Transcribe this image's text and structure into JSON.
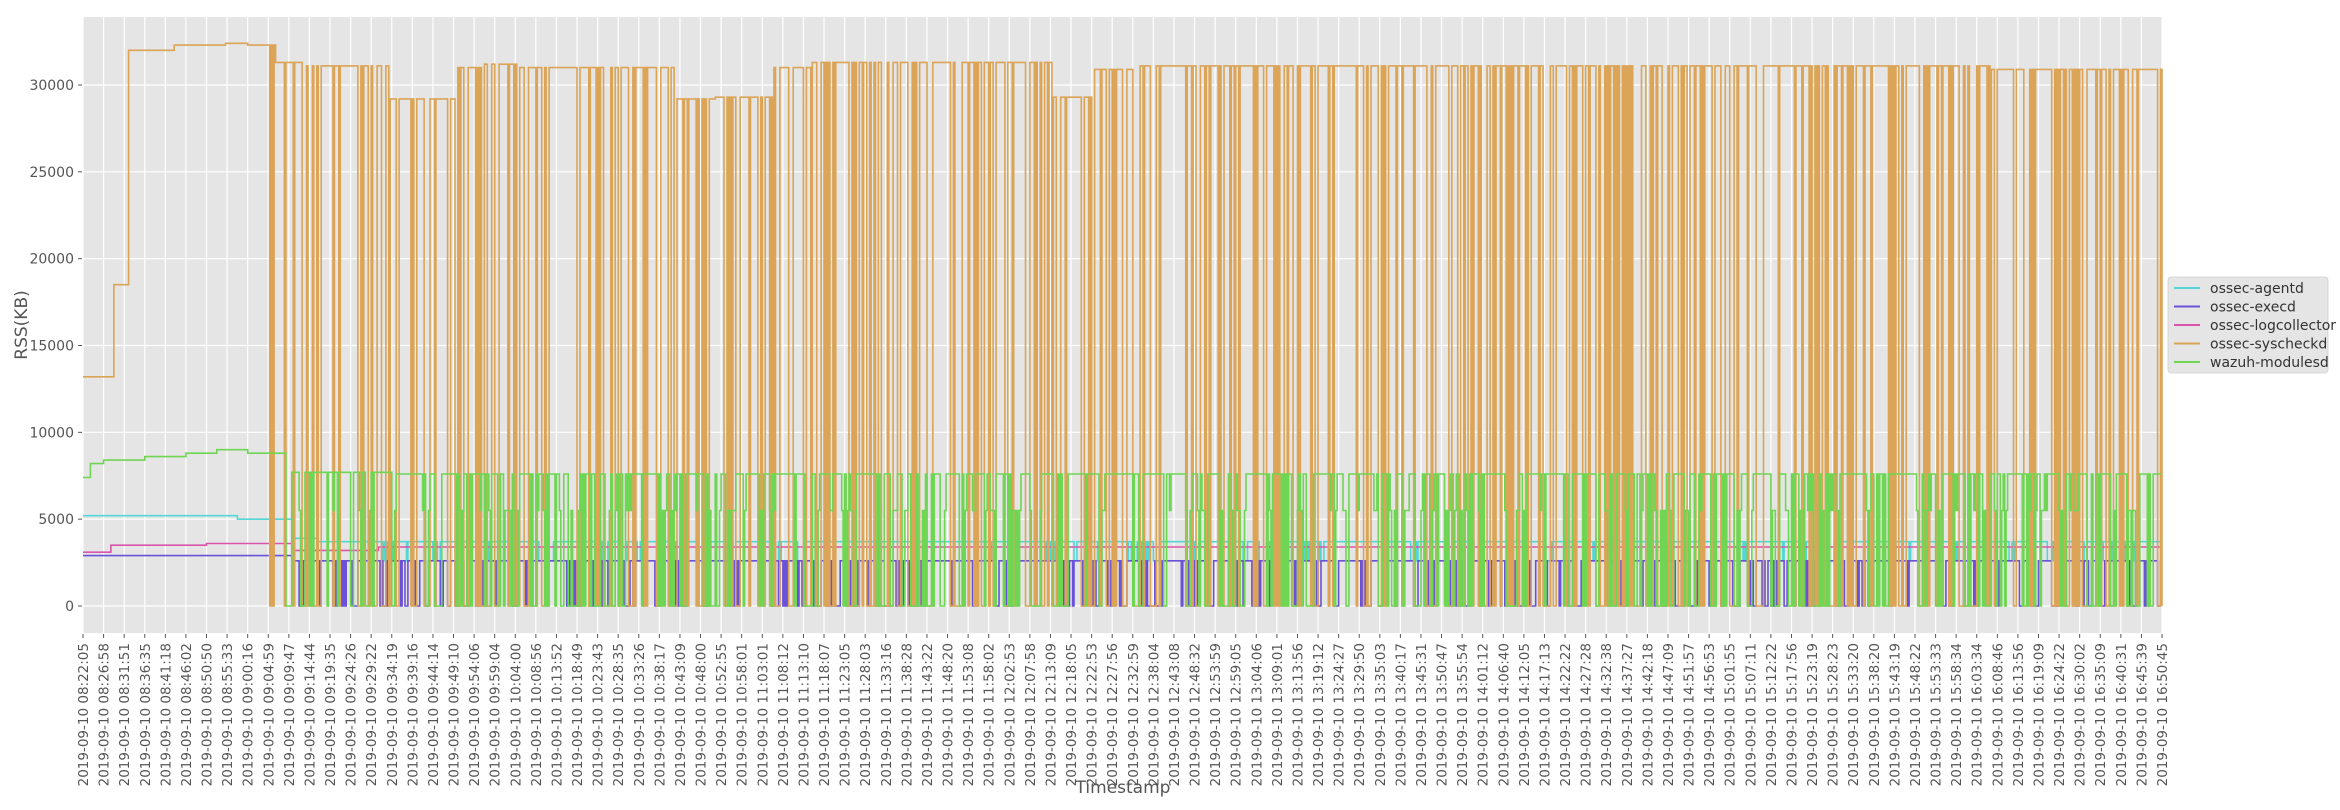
{
  "chart_data": {
    "type": "line",
    "title": "",
    "xlabel": "Timestamp",
    "ylabel": "RSS(KB)",
    "ylim": [
      -1500,
      33700
    ],
    "yticks": [
      0,
      5000,
      10000,
      15000,
      20000,
      25000,
      30000
    ],
    "grid": true,
    "legend_position": "right, outside plot, vertically centered",
    "x_tick_labels": [
      "2019-09-10 08:22:05",
      "2019-09-10 08:26:58",
      "2019-09-10 08:31:51",
      "2019-09-10 08:36:35",
      "2019-09-10 08:41:18",
      "2019-09-10 08:46:02",
      "2019-09-10 08:50:50",
      "2019-09-10 08:55:33",
      "2019-09-10 09:00:16",
      "2019-09-10 09:04:59",
      "2019-09-10 09:09:47",
      "2019-09-10 09:14:44",
      "2019-09-10 09:19:35",
      "2019-09-10 09:24:26",
      "2019-09-10 09:29:22",
      "2019-09-10 09:34:19",
      "2019-09-10 09:39:16",
      "2019-09-10 09:44:14",
      "2019-09-10 09:49:10",
      "2019-09-10 09:54:06",
      "2019-09-10 09:59:04",
      "2019-09-10 10:04:00",
      "2019-09-10 10:08:56",
      "2019-09-10 10:13:52",
      "2019-09-10 10:18:49",
      "2019-09-10 10:23:43",
      "2019-09-10 10:28:35",
      "2019-09-10 10:33:26",
      "2019-09-10 10:38:17",
      "2019-09-10 10:43:09",
      "2019-09-10 10:48:00",
      "2019-09-10 10:52:55",
      "2019-09-10 10:58:01",
      "2019-09-10 11:03:01",
      "2019-09-10 11:08:12",
      "2019-09-10 11:13:10",
      "2019-09-10 11:18:07",
      "2019-09-10 11:23:05",
      "2019-09-10 11:28:03",
      "2019-09-10 11:33:16",
      "2019-09-10 11:38:28",
      "2019-09-10 11:43:22",
      "2019-09-10 11:48:20",
      "2019-09-10 11:53:08",
      "2019-09-10 11:58:02",
      "2019-09-10 12:02:53",
      "2019-09-10 12:07:58",
      "2019-09-10 12:13:09",
      "2019-09-10 12:18:05",
      "2019-09-10 12:22:53",
      "2019-09-10 12:27:56",
      "2019-09-10 12:32:59",
      "2019-09-10 12:38:04",
      "2019-09-10 12:43:08",
      "2019-09-10 12:48:32",
      "2019-09-10 12:53:59",
      "2019-09-10 12:59:05",
      "2019-09-10 13:04:06",
      "2019-09-10 13:09:01",
      "2019-09-10 13:13:56",
      "2019-09-10 13:19:12",
      "2019-09-10 13:24:27",
      "2019-09-10 13:29:50",
      "2019-09-10 13:35:03",
      "2019-09-10 13:40:17",
      "2019-09-10 13:45:31",
      "2019-09-10 13:50:47",
      "2019-09-10 13:55:54",
      "2019-09-10 14:01:12",
      "2019-09-10 14:06:40",
      "2019-09-10 14:12:05",
      "2019-09-10 14:17:13",
      "2019-09-10 14:22:22",
      "2019-09-10 14:27:28",
      "2019-09-10 14:32:38",
      "2019-09-10 14:37:27",
      "2019-09-10 14:42:18",
      "2019-09-10 14:47:09",
      "2019-09-10 14:51:57",
      "2019-09-10 14:56:53",
      "2019-09-10 15:01:55",
      "2019-09-10 15:07:11",
      "2019-09-10 15:12:22",
      "2019-09-10 15:17:56",
      "2019-09-10 15:23:19",
      "2019-09-10 15:28:23",
      "2019-09-10 15:33:20",
      "2019-09-10 15:38:20",
      "2019-09-10 15:43:19",
      "2019-09-10 15:48:22",
      "2019-09-10 15:53:33",
      "2019-09-10 15:58:34",
      "2019-09-10 16:03:34",
      "2019-09-10 16:08:46",
      "2019-09-10 16:13:56",
      "2019-09-10 16:19:09",
      "2019-09-10 16:24:22",
      "2019-09-10 16:30:02",
      "2019-09-10 16:35:09",
      "2019-09-10 16:40:31",
      "2019-09-10 16:45:39",
      "2019-09-10 16:50:45"
    ],
    "series": [
      {
        "name": "ossec-agentd",
        "color": "#55d6d6",
        "baseline_by_tick": [
          [
            0,
            5200
          ],
          [
            7.5,
            5000
          ],
          [
            10.2,
            3900
          ],
          [
            11.3,
            3700
          ],
          [
            101,
            3700
          ]
        ],
        "dip_to": 2600,
        "dip_start_tick": 10.5,
        "dip_density": 0.18
      },
      {
        "name": "ossec-execd",
        "color": "#6a52d8",
        "baseline_by_tick": [
          [
            0,
            2900
          ],
          [
            9.9,
            2900
          ],
          [
            10.2,
            2600
          ],
          [
            101,
            2600
          ]
        ],
        "dip_to": 0,
        "dip_start_tick": 10.5,
        "dip_density": 0.55
      },
      {
        "name": "ossec-logcollector",
        "color": "#db55ad",
        "baseline_by_tick": [
          [
            0,
            3100
          ],
          [
            1.3,
            3500
          ],
          [
            6,
            3600
          ],
          [
            9.9,
            3600
          ],
          [
            10.2,
            3200
          ],
          [
            14.3,
            3400
          ],
          [
            101,
            3400
          ]
        ],
        "dip_to": 3200,
        "dip_start_tick": 999,
        "dip_density": 0
      },
      {
        "name": "ossec-syscheckd",
        "color": "#dba457",
        "baseline_by_tick": [
          [
            0,
            13200
          ],
          [
            1.5,
            18500
          ],
          [
            1.8,
            18500
          ],
          [
            2.1,
            18500
          ],
          [
            2.2,
            32000
          ],
          [
            4.3,
            32000
          ],
          [
            4.4,
            32300
          ],
          [
            6.9,
            32400
          ],
          [
            8,
            32300
          ],
          [
            9.2,
            32300
          ],
          [
            9.3,
            31300
          ],
          [
            10.7,
            31300
          ],
          [
            10.8,
            31100
          ],
          [
            14.7,
            31100
          ],
          [
            14.8,
            29200
          ],
          [
            18,
            29200
          ],
          [
            18.1,
            31000
          ],
          [
            19.2,
            31000
          ],
          [
            19.3,
            31200
          ],
          [
            21,
            31200
          ],
          [
            21.1,
            31000
          ],
          [
            28.7,
            31000
          ],
          [
            28.8,
            29200
          ],
          [
            30.6,
            29200
          ],
          [
            30.7,
            29300
          ],
          [
            33.4,
            29300
          ],
          [
            33.5,
            31000
          ],
          [
            35.2,
            31000
          ],
          [
            35.3,
            31300
          ],
          [
            40,
            31300
          ],
          [
            47,
            31300
          ],
          [
            47.1,
            29300
          ],
          [
            49,
            29300
          ],
          [
            49.1,
            30900
          ],
          [
            50.9,
            30900
          ],
          [
            51,
            31100
          ],
          [
            92.5,
            31100
          ],
          [
            92.6,
            30900
          ],
          [
            101,
            30900
          ]
        ],
        "dip_to": 0,
        "dip_start_tick": 9.0,
        "dip_density": 0.75
      },
      {
        "name": "wazuh-modulesd",
        "color": "#6fd653",
        "baseline_by_tick": [
          [
            0,
            7400
          ],
          [
            0.3,
            8200
          ],
          [
            1,
            8400
          ],
          [
            3,
            8600
          ],
          [
            5,
            8800
          ],
          [
            6.5,
            9000
          ],
          [
            8,
            8800
          ],
          [
            9.9,
            8800
          ],
          [
            10,
            7700
          ],
          [
            15,
            7600
          ],
          [
            101,
            7600
          ]
        ],
        "secondary_level": 5500,
        "dip_to": 0,
        "dip_start_tick": 9.8,
        "dip_density": 0.7
      }
    ]
  },
  "legend": {
    "items": [
      {
        "label": "ossec-agentd",
        "color": "#55d6d6"
      },
      {
        "label": "ossec-execd",
        "color": "#6a52d8"
      },
      {
        "label": "ossec-logcollector",
        "color": "#db55ad"
      },
      {
        "label": "ossec-syscheckd",
        "color": "#dba457"
      },
      {
        "label": "wazuh-modulesd",
        "color": "#6fd653"
      }
    ]
  },
  "axes": {
    "xlabel": "Timestamp",
    "ylabel": "RSS(KB)",
    "ytick_labels": [
      "0",
      "5000",
      "10000",
      "15000",
      "20000",
      "25000",
      "30000"
    ]
  },
  "style": {
    "plot_bg": "#e5e5e5",
    "grid_color": "#ffffff",
    "legend_bg": "#e5e5e5"
  }
}
